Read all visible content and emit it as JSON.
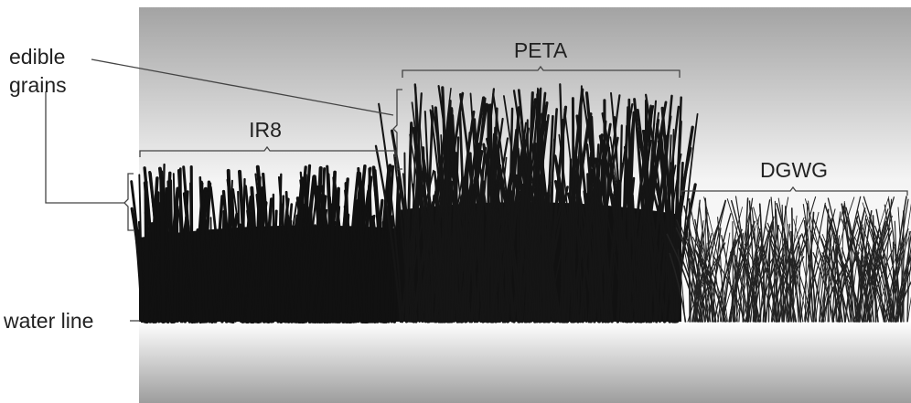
{
  "annotations": {
    "edible_grains": [
      "edible",
      "grains"
    ],
    "water_line": "water line"
  },
  "varieties": [
    "IR8",
    "PETA",
    "DGWG"
  ]
}
